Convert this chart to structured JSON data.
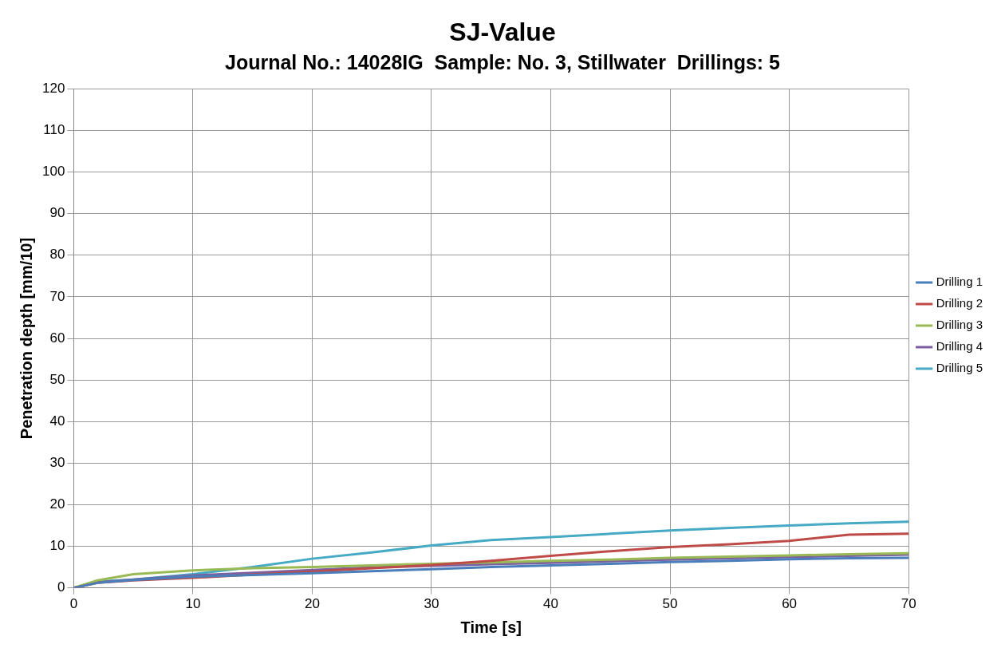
{
  "chart_data": {
    "type": "line",
    "title": "SJ-Value",
    "subtitle": "Journal No.: 14028IG  Sample: No. 3, Stillwater  Drillings: 5",
    "xlabel": "Time [s]",
    "ylabel": "Penetration depth [mm/10]",
    "x": [
      0,
      2,
      5,
      10,
      15,
      20,
      25,
      30,
      35,
      40,
      45,
      50,
      55,
      60,
      65,
      70
    ],
    "series": [
      {
        "name": "Drilling 1",
        "color": "#4a7ebb",
        "values": [
          0,
          1.2,
          1.9,
          2.7,
          3.1,
          3.5,
          4,
          4.5,
          5,
          5.4,
          5.8,
          6.2,
          6.5,
          6.9,
          7.1,
          7.2
        ]
      },
      {
        "name": "Drilling 2",
        "color": "#be4b48",
        "values": [
          0,
          1.2,
          1.8,
          2.4,
          3.2,
          3.9,
          4.7,
          5.5,
          6.5,
          7.7,
          8.8,
          9.8,
          10.5,
          11.3,
          12.8,
          13
        ]
      },
      {
        "name": "Drilling 3",
        "color": "#98b954",
        "values": [
          0,
          1.8,
          3.3,
          4.2,
          4.7,
          5,
          5.4,
          5.8,
          6.1,
          6.5,
          6.8,
          7.2,
          7.5,
          7.8,
          8.1,
          8.3
        ]
      },
      {
        "name": "Drilling 4",
        "color": "#7d60a0",
        "values": [
          0,
          1.3,
          2,
          3,
          3.6,
          4.3,
          4.9,
          5.3,
          5.7,
          6,
          6.4,
          6.8,
          7.1,
          7.4,
          7.7,
          8
        ]
      },
      {
        "name": "Drilling 5",
        "color": "#46aac5",
        "values": [
          0,
          1.5,
          2,
          3.3,
          5,
          7,
          8.5,
          10.2,
          11.5,
          12.2,
          13,
          13.8,
          14.4,
          15,
          15.5,
          15.9
        ]
      }
    ],
    "xlim": [
      0,
      70
    ],
    "xticks": [
      0,
      10,
      20,
      30,
      40,
      50,
      60,
      70
    ],
    "ylim": [
      0,
      120
    ],
    "yticks": [
      0,
      10,
      20,
      30,
      40,
      50,
      60,
      70,
      80,
      90,
      100,
      110,
      120
    ],
    "grid": true,
    "legend": "right",
    "marker": "none",
    "line_style": "solid"
  }
}
